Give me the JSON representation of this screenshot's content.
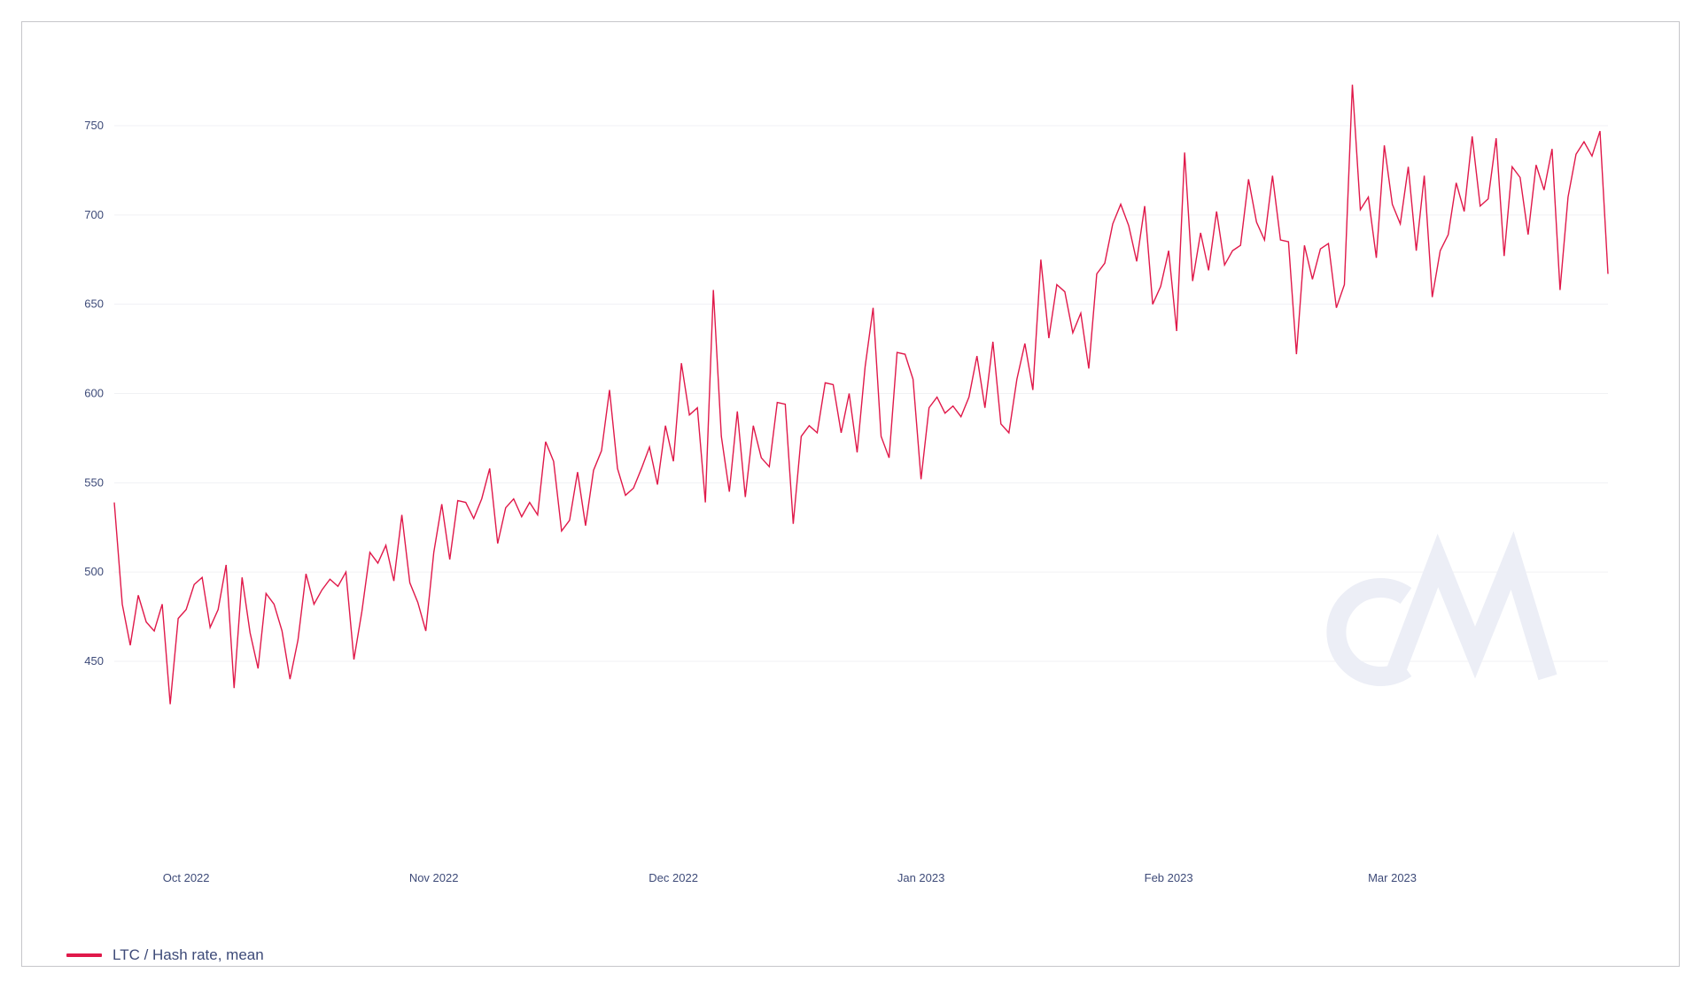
{
  "chart_data": {
    "type": "line",
    "title": "",
    "xlabel": "",
    "ylabel": "",
    "x_start": "2022-09-22",
    "x_step_days": 1,
    "xlim": [
      "2022-09-22",
      "2023-03-28"
    ],
    "ylim": [
      425,
      780
    ],
    "y_ticks": [
      450,
      500,
      550,
      600,
      650,
      700,
      750
    ],
    "x_ticks": [
      {
        "date": "2022-10-01",
        "label": "Oct 2022"
      },
      {
        "date": "2022-11-01",
        "label": "Nov 2022"
      },
      {
        "date": "2022-12-01",
        "label": "Dec 2022"
      },
      {
        "date": "2023-01-01",
        "label": "Jan 2023"
      },
      {
        "date": "2023-02-01",
        "label": "Feb 2023"
      },
      {
        "date": "2023-03-01",
        "label": "Mar 2023"
      }
    ],
    "grid": true,
    "legend_position": "bottom-left",
    "series": [
      {
        "name": "LTC / Hash rate, mean",
        "color": "#e0194a",
        "values": [
          539,
          482,
          459,
          487,
          472,
          467,
          482,
          426,
          474,
          479,
          493,
          497,
          469,
          479,
          504,
          435,
          497,
          466,
          446,
          488,
          482,
          467,
          440,
          462,
          499,
          482,
          490,
          496,
          492,
          500,
          451,
          478,
          511,
          505,
          515,
          495,
          532,
          494,
          483,
          467,
          511,
          538,
          507,
          540,
          539,
          530,
          541,
          558,
          516,
          536,
          541,
          531,
          539,
          532,
          573,
          562,
          523,
          529,
          556,
          526,
          557,
          568,
          602,
          558,
          543,
          547,
          558,
          570,
          549,
          582,
          562,
          617,
          588,
          592,
          539,
          658,
          576,
          545,
          590,
          542,
          582,
          564,
          559,
          595,
          594,
          527,
          576,
          582,
          578,
          606,
          605,
          578,
          600,
          567,
          615,
          648,
          576,
          564,
          623,
          622,
          608,
          552,
          592,
          598,
          589,
          593,
          587,
          598,
          621,
          592,
          629,
          583,
          578,
          608,
          628,
          602,
          675,
          631,
          661,
          657,
          634,
          645,
          614,
          667,
          673,
          695,
          706,
          694,
          674,
          705,
          650,
          660,
          680,
          635,
          735,
          663,
          690,
          669,
          702,
          672,
          680,
          683,
          720,
          696,
          686,
          722,
          686,
          685,
          622,
          683,
          664,
          681,
          684,
          648,
          661,
          773,
          703,
          710,
          676,
          739,
          706,
          695,
          727,
          680,
          722,
          654,
          680,
          689,
          718,
          702,
          744,
          705,
          709,
          743,
          677,
          727,
          721,
          689,
          728,
          714,
          737,
          658,
          710,
          734,
          741,
          733,
          747,
          667
        ]
      }
    ]
  }
}
